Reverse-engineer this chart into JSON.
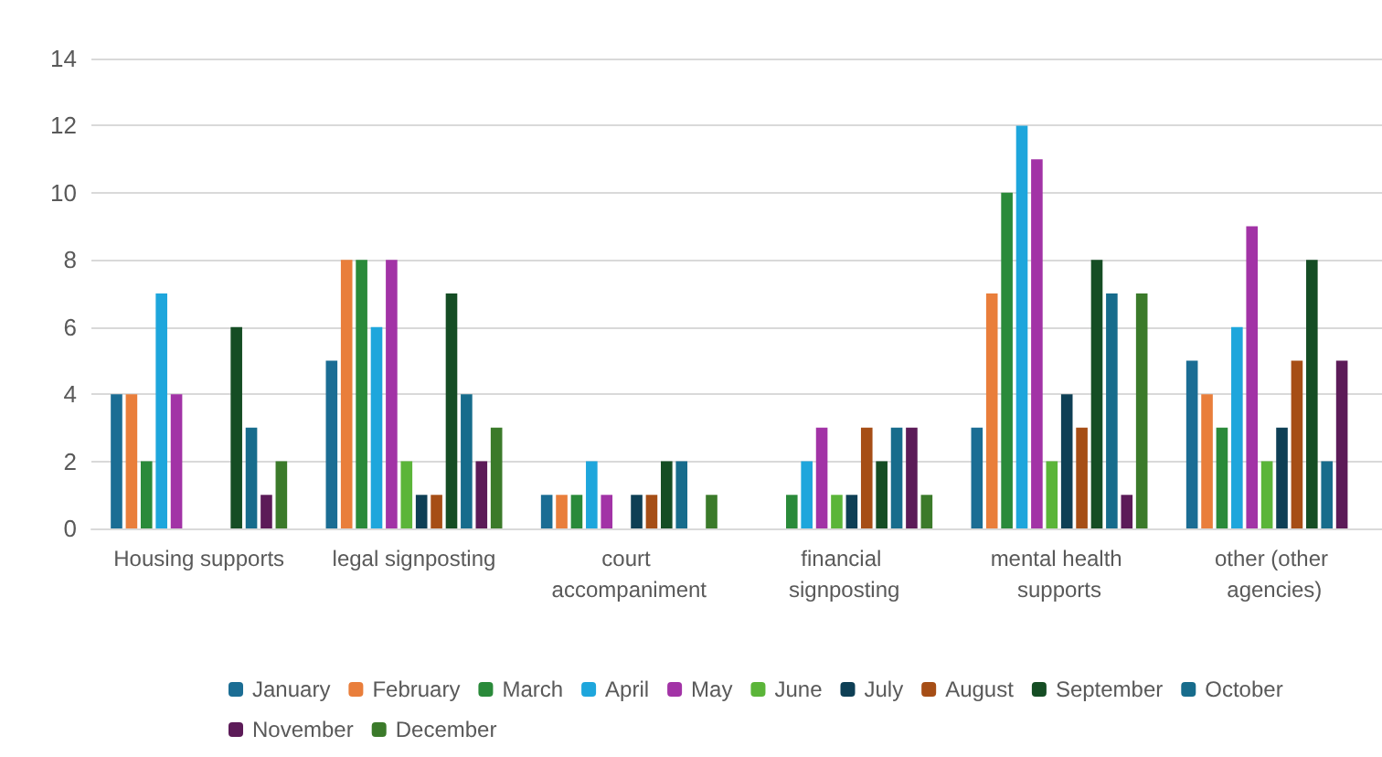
{
  "chart_data": {
    "type": "bar",
    "categories": [
      "Housing supports",
      "legal signposting",
      "court accompaniment",
      "financial signposting",
      "mental health supports",
      "other (other agencies)"
    ],
    "series": [
      {
        "name": "January",
        "color": "#1b6d94",
        "values": [
          4,
          5,
          1,
          0,
          3,
          5
        ]
      },
      {
        "name": "February",
        "color": "#e97e3b",
        "values": [
          4,
          8,
          1,
          0,
          7,
          4
        ]
      },
      {
        "name": "March",
        "color": "#2a8a3a",
        "values": [
          2,
          8,
          1,
          1,
          10,
          3
        ]
      },
      {
        "name": "April",
        "color": "#1ea6dc",
        "values": [
          7,
          6,
          2,
          2,
          12,
          6
        ]
      },
      {
        "name": "May",
        "color": "#a233a6",
        "values": [
          4,
          8,
          1,
          3,
          11,
          9
        ]
      },
      {
        "name": "June",
        "color": "#5bb539",
        "values": [
          0,
          2,
          0,
          1,
          2,
          2
        ]
      },
      {
        "name": "July",
        "color": "#0e3f55",
        "values": [
          0,
          1,
          1,
          1,
          4,
          3
        ]
      },
      {
        "name": "August",
        "color": "#a64e16",
        "values": [
          0,
          1,
          1,
          3,
          3,
          5
        ]
      },
      {
        "name": "September",
        "color": "#154d24",
        "values": [
          6,
          7,
          2,
          2,
          8,
          8
        ]
      },
      {
        "name": "October",
        "color": "#176c8c",
        "values": [
          3,
          4,
          2,
          3,
          7,
          2
        ]
      },
      {
        "name": "November",
        "color": "#5c1b58",
        "values": [
          1,
          2,
          0,
          3,
          1,
          5
        ]
      },
      {
        "name": "December",
        "color": "#3b7a2a",
        "values": [
          2,
          3,
          1,
          1,
          7,
          null
        ]
      }
    ],
    "ylim": [
      0,
      14
    ],
    "yticks": [
      0,
      2,
      4,
      6,
      8,
      10,
      12,
      14
    ],
    "grid": "y",
    "legend": "bottom"
  }
}
